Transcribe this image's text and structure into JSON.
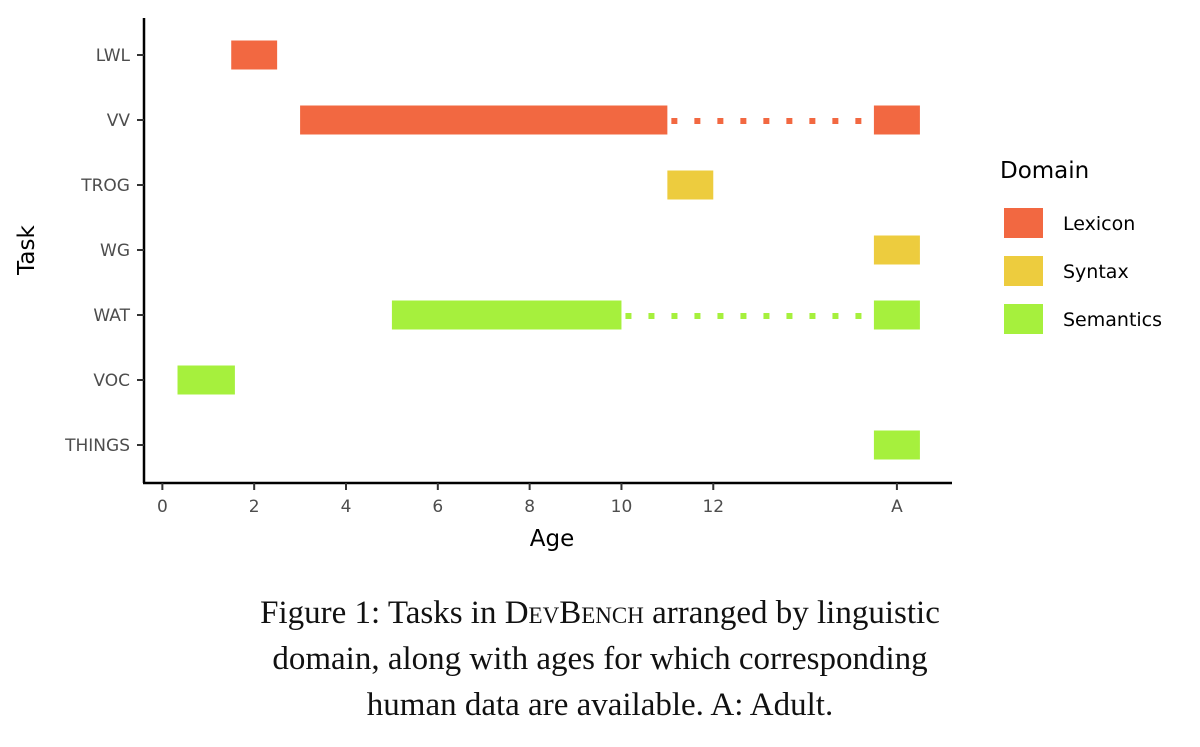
{
  "chart_data": {
    "type": "bar",
    "orientation": "horizontal-range",
    "xlabel": "Age",
    "ylabel": "Task",
    "x_ticks": [
      "0",
      "2",
      "4",
      "6",
      "8",
      "10",
      "12",
      "A"
    ],
    "x_tick_values": [
      0,
      2,
      4,
      6,
      8,
      10,
      12,
      "A"
    ],
    "xlim": [
      -0.4,
      17.2
    ],
    "categories": [
      "LWL",
      "VV",
      "TROG",
      "WG",
      "WAT",
      "VOC",
      "THINGS"
    ],
    "legend": {
      "title": "Domain",
      "position": "right",
      "entries": [
        {
          "name": "Lexicon",
          "color": "#f26841"
        },
        {
          "name": "Syntax",
          "color": "#edcc3e"
        },
        {
          "name": "Semantics",
          "color": "#a6f03d"
        }
      ]
    },
    "grid": false,
    "ranges": [
      {
        "task": "LWL",
        "domain": "Lexicon",
        "start": 1.5,
        "end": 2.5
      },
      {
        "task": "VV",
        "domain": "Lexicon",
        "start": 3,
        "end": 11
      },
      {
        "task": "VV",
        "domain": "Lexicon",
        "start": "A",
        "end": "A"
      },
      {
        "task": "TROG",
        "domain": "Syntax",
        "start": 11,
        "end": 12
      },
      {
        "task": "WG",
        "domain": "Syntax",
        "start": "A",
        "end": "A"
      },
      {
        "task": "WAT",
        "domain": "Semantics",
        "start": 5,
        "end": 10
      },
      {
        "task": "WAT",
        "domain": "Semantics",
        "start": "A",
        "end": "A"
      },
      {
        "task": "VOC",
        "domain": "Semantics",
        "start": 0.33,
        "end": 1.58
      },
      {
        "task": "THINGS",
        "domain": "Semantics",
        "start": "A",
        "end": "A"
      }
    ],
    "dotted_links": [
      {
        "task": "VV",
        "domain": "Lexicon",
        "from": 11,
        "to": "A"
      },
      {
        "task": "WAT",
        "domain": "Semantics",
        "from": 10,
        "to": "A"
      }
    ]
  },
  "caption": {
    "prefix": "Figure 1: Tasks in ",
    "name_sc": "DevBench",
    "line1_rest": " arranged by linguistic",
    "line2": "domain, along with ages for which corresponding",
    "line3": "human data are available. A: Adult."
  }
}
